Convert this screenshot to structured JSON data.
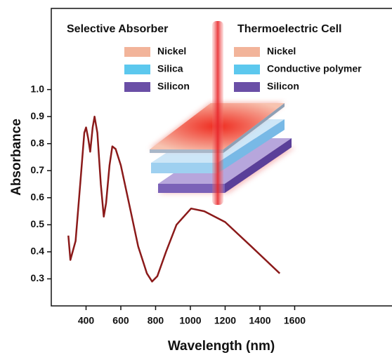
{
  "chart_data": {
    "type": "line",
    "x_label": "Wavelength (nm)",
    "y_label": "Absorbance",
    "xlim": [
      200,
      2180
    ],
    "ylim": [
      0.2,
      1.3
    ],
    "xticks": [
      400,
      600,
      800,
      1000,
      1200,
      1400,
      1600
    ],
    "yticks": [
      {
        "value": 0.3,
        "label": "0.3"
      },
      0.4,
      0.5,
      0.6,
      0.7,
      0.8,
      0.9,
      {
        "value": 1,
        "label": "1.0"
      }
    ],
    "series": [
      {
        "color": "#8b1a1a",
        "x": [
          298,
          310,
          340,
          370,
          390,
          400,
          412,
          424,
          438,
          449,
          465,
          485,
          502,
          515,
          535,
          551,
          570,
          600,
          650,
          700,
          750,
          780,
          810,
          860,
          920,
          1004,
          1080,
          1200,
          1350,
          1514
        ],
        "values": [
          0.46,
          0.37,
          0.44,
          0.68,
          0.84,
          0.86,
          0.82,
          0.77,
          0.86,
          0.9,
          0.84,
          0.65,
          0.53,
          0.58,
          0.72,
          0.79,
          0.78,
          0.72,
          0.57,
          0.42,
          0.32,
          0.29,
          0.31,
          0.4,
          0.5,
          0.56,
          0.55,
          0.51,
          0.42,
          0.32
        ]
      }
    ],
    "inset": {
      "left_title": "Selective Absorber",
      "right_title": "Thermoelectric Cell",
      "left_legend": [
        {
          "label": "Nickel",
          "color": "#f2b49a"
        },
        {
          "label": "Silica",
          "color": "#5cc8ee"
        },
        {
          "label": "Silicon",
          "color": "#6a4fa6"
        }
      ],
      "right_legend": [
        {
          "label": "Nickel",
          "color": "#f2b49a"
        },
        {
          "label": "Conductive polymer",
          "color": "#5cc8ee"
        },
        {
          "label": "Silicon",
          "color": "#6a4fa6"
        }
      ]
    }
  }
}
